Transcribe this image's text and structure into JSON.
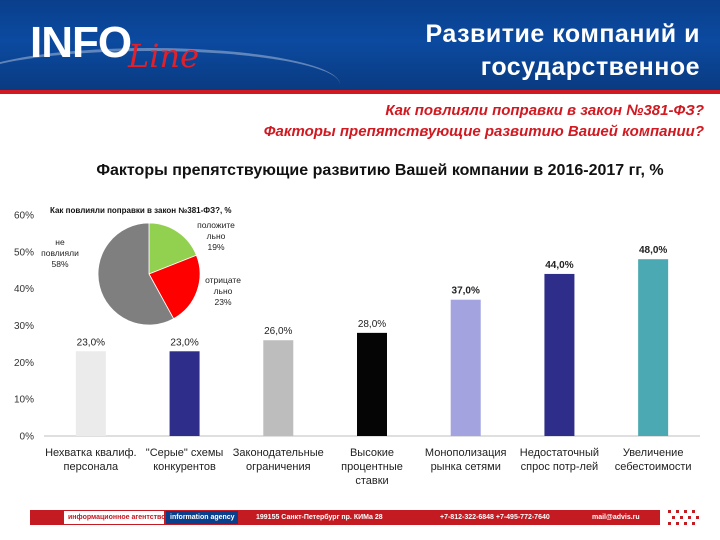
{
  "header": {
    "logo_text": "INFO",
    "logo_script": "Line",
    "title_line1": "Развитие компаний и",
    "title_line2": "государственное регулирование"
  },
  "questions": {
    "q1": "Как повлияли поправки в закон №381-ФЗ?",
    "q2": "Факторы препятствующие развитию Вашей компании?"
  },
  "chart_data": [
    {
      "type": "bar",
      "title": "Факторы препятствующие развитию Вашей компании в 2016-2017 гг, %",
      "categories": [
        [
          "Нехватка квалиф.",
          "персонала"
        ],
        [
          "\"Серые\" схемы",
          "конкурентов"
        ],
        [
          "Законодательные",
          "ограничения"
        ],
        [
          "Высокие",
          "процентные",
          "ставки"
        ],
        [
          "Монополизация",
          "рынка сетями"
        ],
        [
          "Недостаточный",
          "спрос потр-лей"
        ],
        [
          "Увеличение",
          "себестоимости"
        ]
      ],
      "values": [
        23,
        23,
        26,
        28,
        37,
        44,
        48
      ],
      "value_labels": [
        "23,0%",
        "23,0%",
        "26,0%",
        "28,0%",
        "37,0%",
        "44,0%",
        "48,0%"
      ],
      "colors": [
        "#ebebeb",
        "#2e2e8a",
        "#bdbdbd",
        "#050505",
        "#a3a3e0",
        "#2e2e8a",
        "#4aa9b2"
      ],
      "ylim": [
        0,
        60
      ],
      "yticks": [
        0,
        10,
        20,
        30,
        40,
        50,
        60
      ],
      "ytick_labels": [
        "0%",
        "10%",
        "20%",
        "30%",
        "40%",
        "50%",
        "60%"
      ],
      "grid": false,
      "xlabel": "",
      "ylabel": ""
    },
    {
      "type": "pie",
      "title": "Как повлияли поправки в закон №381-ФЗ?, %",
      "slices": [
        {
          "label": [
            "положите",
            "льно",
            "19%"
          ],
          "value": 19,
          "color": "#92d050"
        },
        {
          "label": [
            "отрицате",
            "льно",
            "23%"
          ],
          "value": 23,
          "color": "#ff0000"
        },
        {
          "label": [
            "не",
            "повлияли",
            "58%"
          ],
          "value": 58,
          "color": "#7f7f7f"
        }
      ]
    }
  ],
  "footer": {
    "agency_ru": "информационное агентство",
    "agency_en": "information agency",
    "address": "199155 Санкт-Петербург пр. КИМа 28",
    "phones": "+7-812-322-6848  +7-495-772-7640",
    "email": "mail@advis.ru"
  }
}
